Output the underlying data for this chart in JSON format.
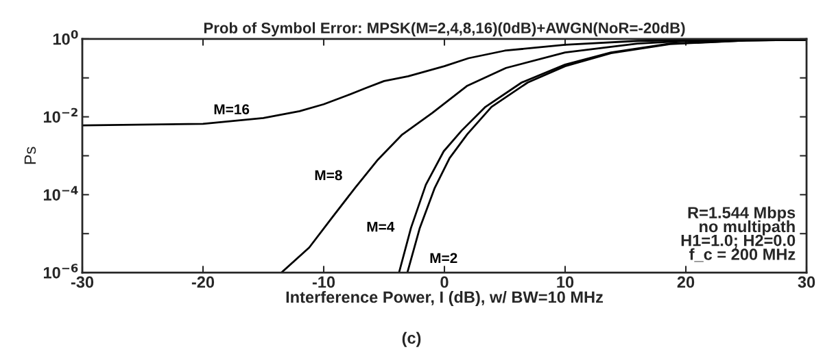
{
  "chart_data": {
    "type": "line",
    "title": "Prob of Symbol Error: MPSK(M=2,4,8,16)(0dB)+AWGN(NoR=-20dB)",
    "xlabel": "Interference Power, I (dB), w/ BW=10 MHz",
    "ylabel": "Ps",
    "log": "y",
    "xlim": [
      -30,
      30
    ],
    "ylim": [
      1e-06,
      1
    ],
    "xticks": [
      -30,
      -20,
      -10,
      0,
      10,
      20,
      30
    ],
    "yticks": [
      {
        "value": 1,
        "label": "10$^{0}$"
      },
      {
        "value": 0.1,
        "label": null
      },
      {
        "value": 0.01,
        "label": "10$^{−2}$"
      },
      {
        "value": 0.001,
        "label": null
      },
      {
        "value": 0.0001,
        "label": "10$^{−4}$"
      },
      {
        "value": 1e-05,
        "label": null
      },
      {
        "value": 1e-06,
        "label": "10$^{−6}$"
      }
    ],
    "grid": false,
    "legend": false,
    "line_style": "solid",
    "marker": "none",
    "series": [
      {
        "name": "M=16",
        "color": "#000000",
        "x": [
          -30,
          -20,
          -15,
          -12,
          -10,
          -8,
          -6.5,
          -5,
          -3,
          0,
          2,
          5,
          10,
          16,
          20,
          30
        ],
        "values": [
          0.006,
          0.0066,
          0.0093,
          0.014,
          0.021,
          0.036,
          0.055,
          0.083,
          0.11,
          0.2,
          0.32,
          0.5,
          0.71,
          0.89,
          0.93,
          0.95
        ]
      },
      {
        "name": "M=8",
        "color": "#000000",
        "x": [
          -13.5,
          -11.2,
          -9.3,
          -7.4,
          -5.5,
          -3.5,
          -1,
          1.9,
          5.1,
          10,
          16,
          20,
          30
        ],
        "values": [
          1e-06,
          4.4e-06,
          2.6e-05,
          0.00015,
          0.0008,
          0.0035,
          0.0126,
          0.063,
          0.18,
          0.45,
          0.76,
          0.89,
          0.95
        ]
      },
      {
        "name": "M=4",
        "color": "#000000",
        "x": [
          -3.76,
          -2.77,
          -1.54,
          -0.06,
          1.42,
          3.4,
          6.4,
          10,
          13.8,
          18.7,
          25,
          30
        ],
        "values": [
          1e-06,
          1.4e-05,
          0.00018,
          0.0013,
          0.0044,
          0.018,
          0.076,
          0.22,
          0.45,
          0.76,
          0.91,
          0.95
        ]
      },
      {
        "name": "M=2",
        "color": "#000000",
        "x": [
          -3.07,
          -2.04,
          -0.8,
          0.43,
          1.9,
          3.9,
          6.9,
          10,
          13.8,
          18.7,
          25,
          30
        ],
        "values": [
          1e-06,
          1.4e-05,
          0.00015,
          0.00087,
          0.0036,
          0.018,
          0.076,
          0.2,
          0.43,
          0.74,
          0.91,
          0.95
        ]
      }
    ],
    "annotations": [
      "R=1.544 Mbps\nno multipath\nH1=1.0; H2=0.0\nf_c = 200 MHz",
      "(c)"
    ]
  }
}
